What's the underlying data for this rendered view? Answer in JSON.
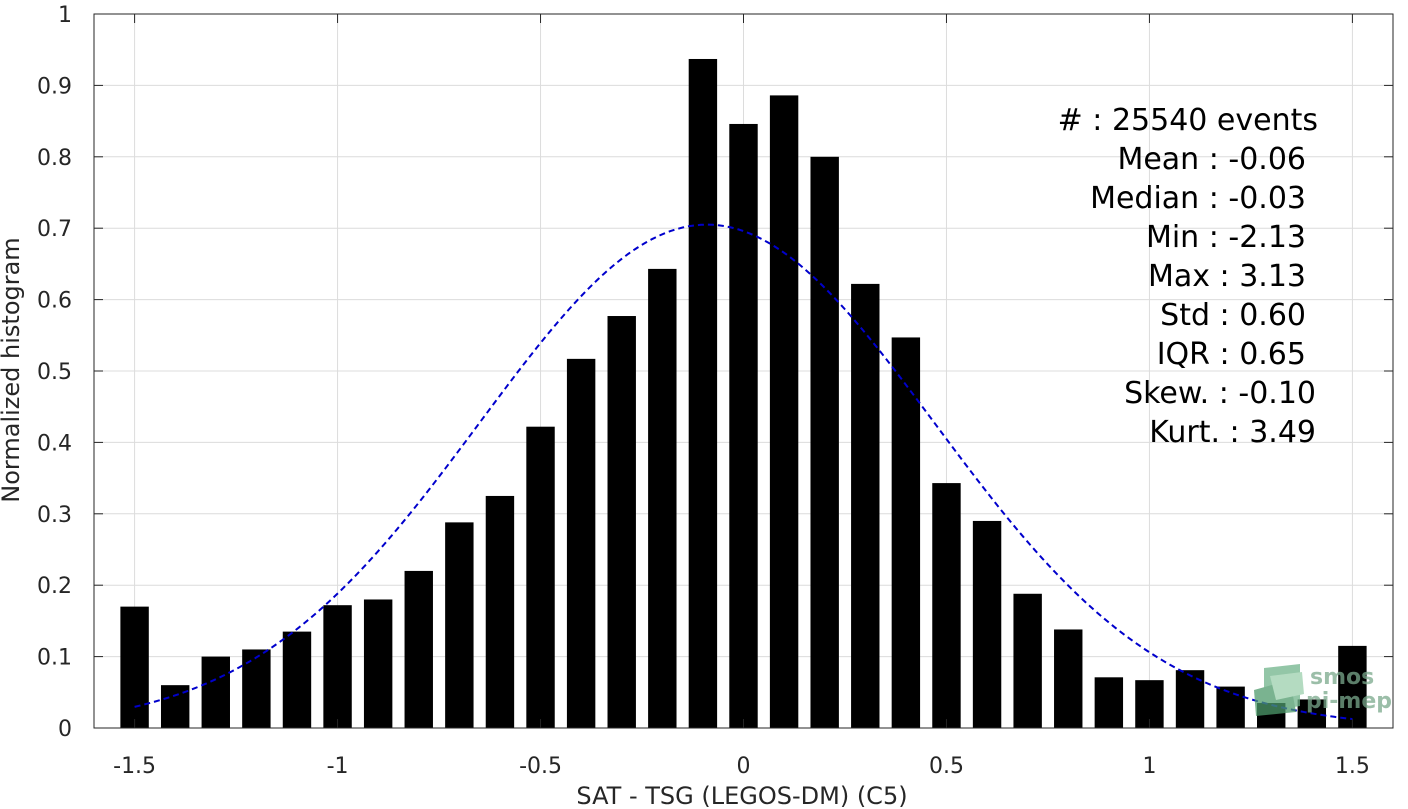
{
  "chart_data": {
    "type": "bar",
    "xlabel": "SAT - TSG (LEGOS-DM) (C5)",
    "ylabel": "Normalized histogram",
    "xlim": [
      -1.6,
      1.6
    ],
    "ylim": [
      0,
      1
    ],
    "x_ticks": [
      "-1.5",
      "-1",
      "-0.5",
      "0",
      "0.5",
      "1",
      "1.5"
    ],
    "y_ticks": [
      "0",
      "0.1",
      "0.2",
      "0.3",
      "0.4",
      "0.5",
      "0.6",
      "0.7",
      "0.8",
      "0.9",
      "1"
    ],
    "grid": true,
    "bar_color": "#000000",
    "bars": [
      {
        "x": -1.5,
        "y": 0.17
      },
      {
        "x": -1.4,
        "y": 0.06
      },
      {
        "x": -1.3,
        "y": 0.1
      },
      {
        "x": -1.2,
        "y": 0.11
      },
      {
        "x": -1.1,
        "y": 0.135
      },
      {
        "x": -1.0,
        "y": 0.172
      },
      {
        "x": -0.9,
        "y": 0.18
      },
      {
        "x": -0.8,
        "y": 0.22
      },
      {
        "x": -0.7,
        "y": 0.288
      },
      {
        "x": -0.6,
        "y": 0.325
      },
      {
        "x": -0.5,
        "y": 0.422
      },
      {
        "x": -0.4,
        "y": 0.517
      },
      {
        "x": -0.3,
        "y": 0.577
      },
      {
        "x": -0.2,
        "y": 0.643
      },
      {
        "x": -0.1,
        "y": 0.937
      },
      {
        "x": 0.0,
        "y": 0.846
      },
      {
        "x": 0.1,
        "y": 0.886
      },
      {
        "x": 0.2,
        "y": 0.8
      },
      {
        "x": 0.3,
        "y": 0.622
      },
      {
        "x": 0.4,
        "y": 0.547
      },
      {
        "x": 0.5,
        "y": 0.343
      },
      {
        "x": 0.6,
        "y": 0.29
      },
      {
        "x": 0.7,
        "y": 0.188
      },
      {
        "x": 0.8,
        "y": 0.138
      },
      {
        "x": 0.9,
        "y": 0.071
      },
      {
        "x": 1.0,
        "y": 0.067
      },
      {
        "x": 1.1,
        "y": 0.081
      },
      {
        "x": 1.2,
        "y": 0.058
      },
      {
        "x": 1.3,
        "y": 0.035
      },
      {
        "x": 1.4,
        "y": 0.04
      },
      {
        "x": 1.5,
        "y": 0.115
      }
    ],
    "fit_curve": {
      "style": "dashed",
      "color": "#0000cc",
      "mean": -0.09,
      "std": 0.56,
      "peak": 0.705,
      "x_range": [
        -1.5,
        1.5
      ]
    },
    "stats": [
      "#  : 25540 events",
      "Mean : -0.06",
      "Median : -0.03",
      "Min : -2.13",
      "Max : 3.13",
      "Std : 0.60",
      "IQR : 0.65",
      "Skew. : -0.10",
      "Kurt. : 3.49"
    ]
  },
  "watermark": {
    "line1": "smos",
    "line2": "pi-mep",
    "color": "#7aa98c"
  }
}
